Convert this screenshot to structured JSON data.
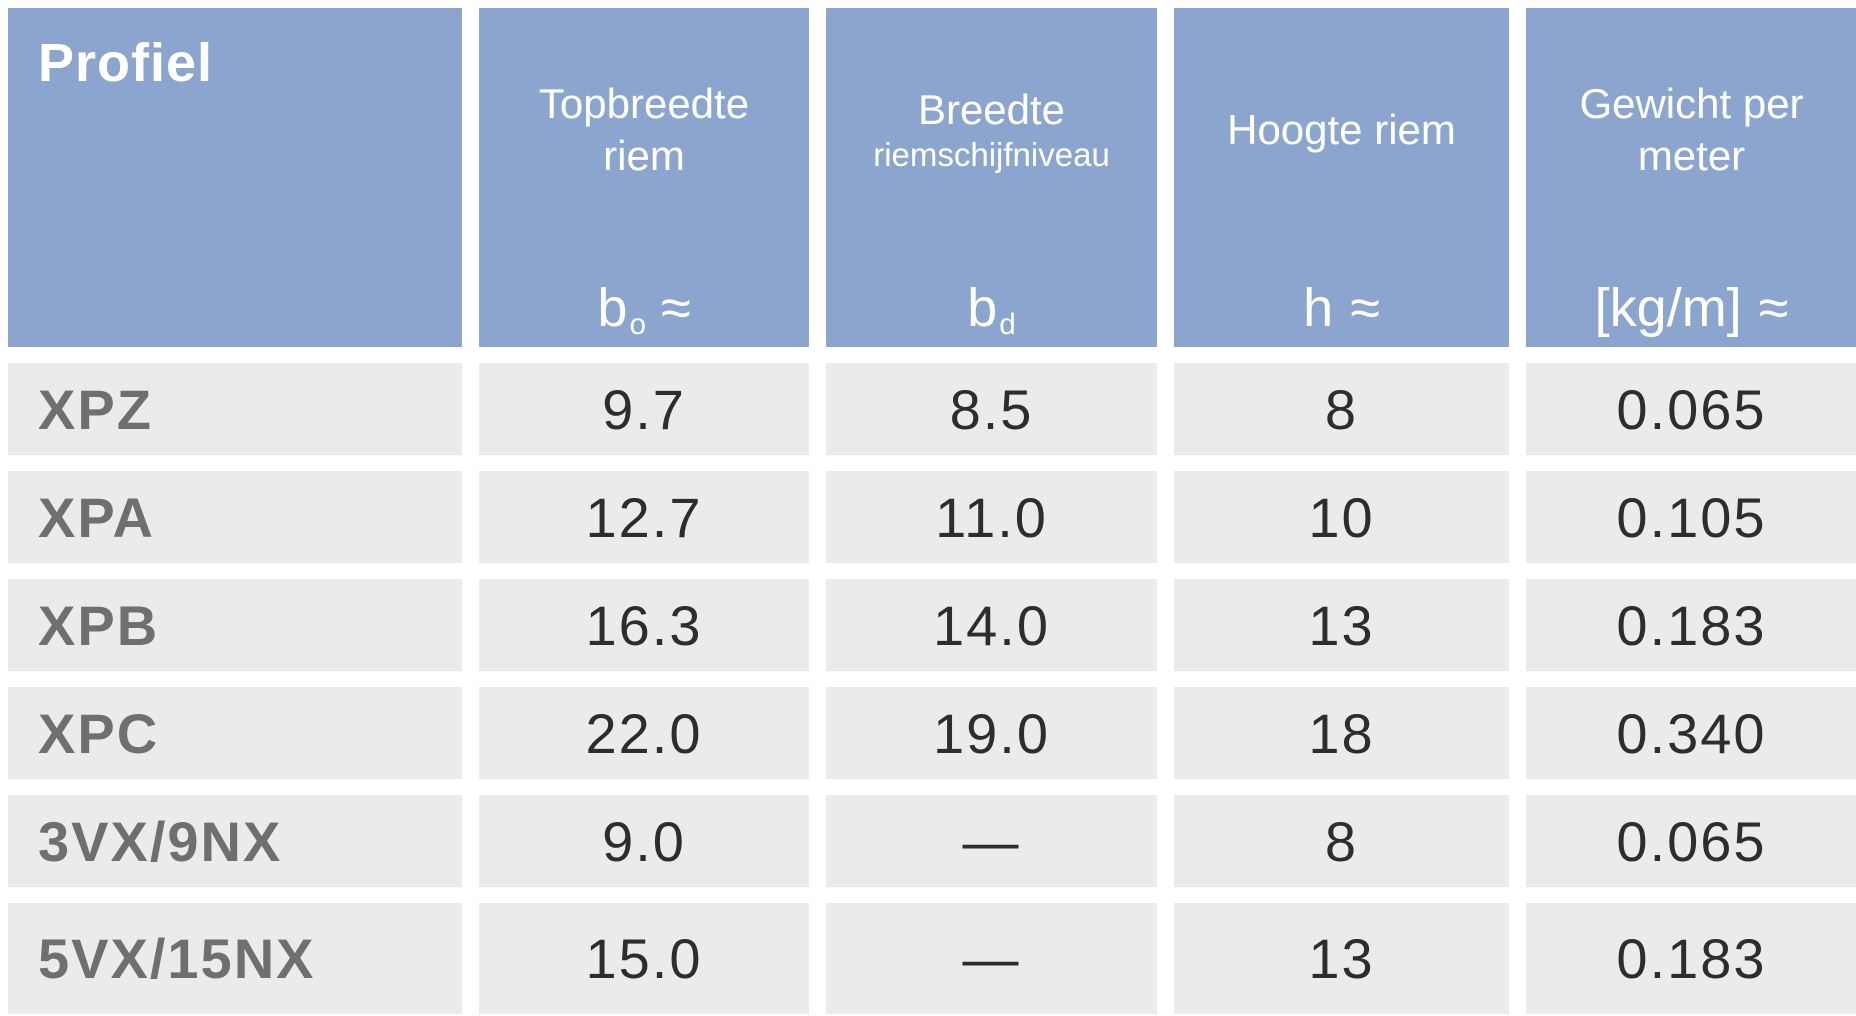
{
  "chart_data": {
    "type": "table",
    "title": "V-belt profile dimensions table (Dutch)",
    "columns": [
      {
        "header": "Profiel",
        "symbol": ""
      },
      {
        "header": "Topbreedte riem",
        "symbol": "bo ≈"
      },
      {
        "header": "Breedte riemschijfniveau",
        "symbol": "bd"
      },
      {
        "header": "Hoogte riem",
        "symbol": "h ≈"
      },
      {
        "header": "Gewicht per meter",
        "symbol": "[kg/m] ≈"
      }
    ],
    "rows": [
      [
        "XPZ",
        "9.7",
        "8.5",
        "8",
        "0.065"
      ],
      [
        "XPA",
        "12.7",
        "11.0",
        "10",
        "0.105"
      ],
      [
        "XPB",
        "16.3",
        "14.0",
        "13",
        "0.183"
      ],
      [
        "XPC",
        "22.0",
        "19.0",
        "18",
        "0.340"
      ],
      [
        "3VX/9NX",
        "9.0",
        "—",
        "8",
        "0.065"
      ],
      [
        "5VX/15NX",
        "15.0",
        "—",
        "13",
        "0.183"
      ]
    ]
  },
  "header": {
    "profiel": "Profiel",
    "col2": {
      "line1": "Topbreedte",
      "line2": "riem",
      "symbol_base": "b",
      "symbol_sub": "o",
      "symbol_approx": " ≈"
    },
    "col3": {
      "line1": "Breedte",
      "line2": "riemschijfniveau",
      "symbol_base": "b",
      "symbol_sub": "d",
      "symbol_approx": ""
    },
    "col4": {
      "line1": "Hoogte riem",
      "line2": "",
      "symbol_base": "h",
      "symbol_sub": "",
      "symbol_approx": " ≈"
    },
    "col5": {
      "line1": "Gewicht per",
      "line2": "meter",
      "symbol_base": "[kg/m]",
      "symbol_sub": "",
      "symbol_approx": " ≈"
    }
  },
  "colors": {
    "header_bg": "#8CA5CE",
    "row_bg": "#EBEBEB",
    "header_text": "#FFFFFF",
    "profile_text": "#6F6F6F",
    "value_text": "#2D2D2D"
  }
}
